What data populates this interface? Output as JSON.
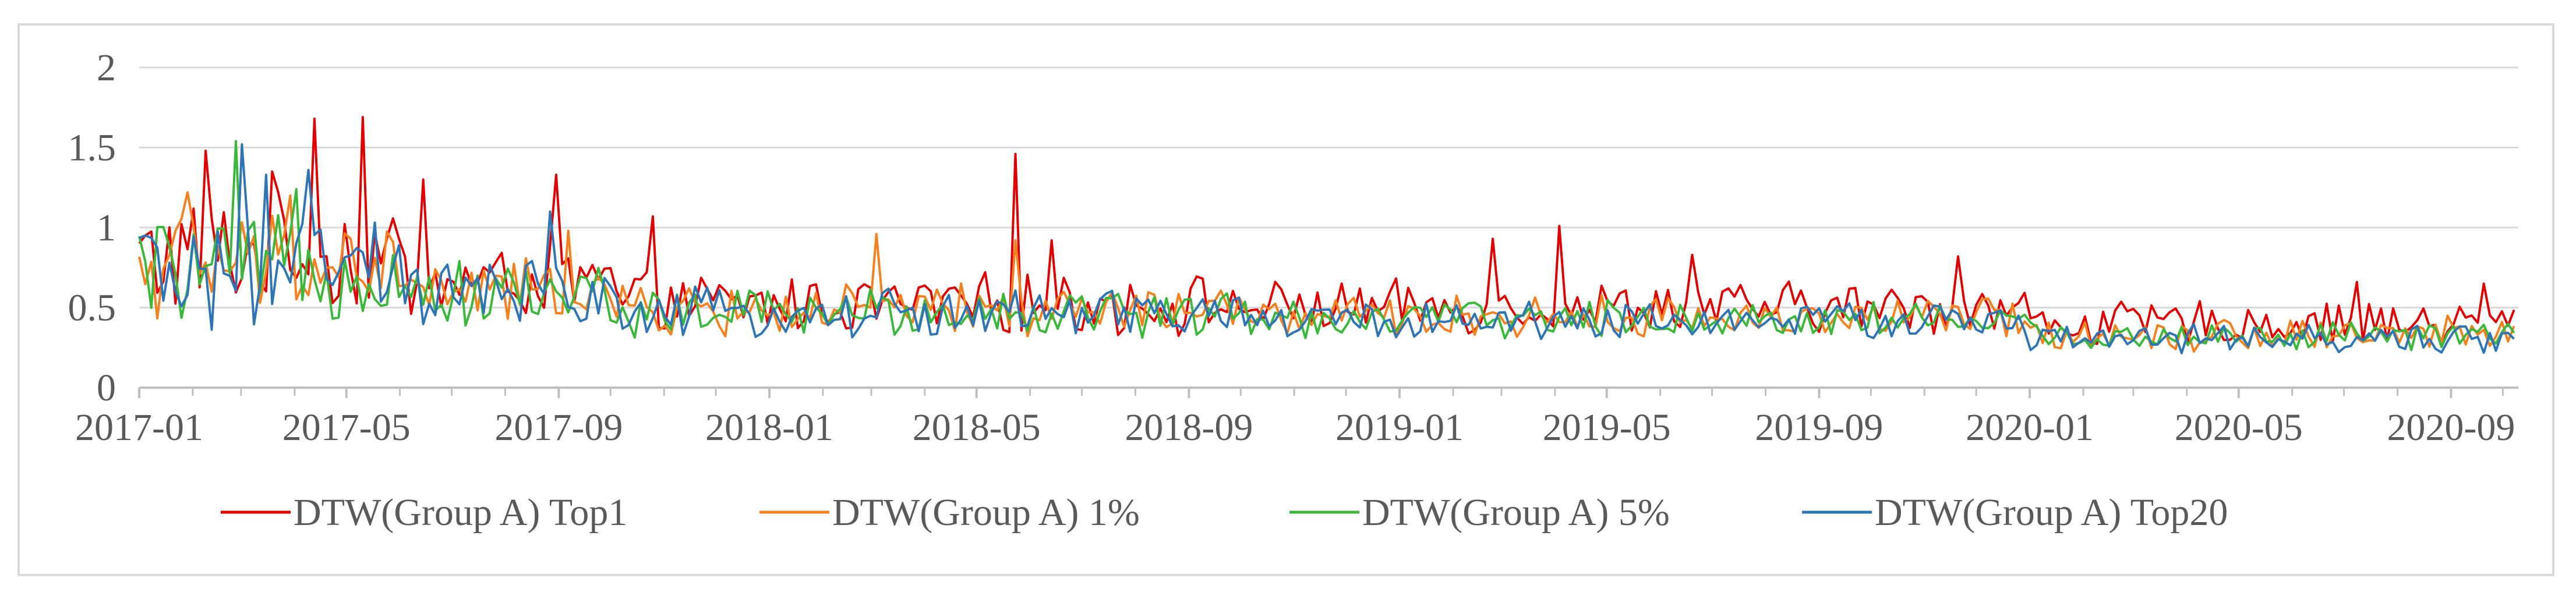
{
  "chart_data": {
    "type": "line",
    "title": "",
    "xlabel": "",
    "ylabel": "",
    "ylim": [
      0,
      2
    ],
    "yticks": [
      "0",
      "0.5",
      "1",
      "1.5",
      "2"
    ],
    "ytick_values": [
      0,
      0.5,
      1,
      1.5,
      2
    ],
    "grid": true,
    "legend_position": "bottom",
    "x_start": "2017-01-01",
    "x_end": "2020-10-10",
    "xticks": [
      "2017-01",
      "2017-05",
      "2017-09",
      "2018-01",
      "2018-05",
      "2018-09",
      "2019-01",
      "2019-05",
      "2019-09",
      "2020-01",
      "2020-05",
      "2020-09"
    ],
    "frequency": "approx. 2 observations per week",
    "series": [
      {
        "name": "DTW(Group A) Top1",
        "color": "#e00000",
        "segments": [
          {
            "from": "2017-01-01",
            "to": "2017-05-31",
            "mean": 0.82,
            "amp": 0.32
          },
          {
            "from": "2017-06-01",
            "to": "2017-09-30",
            "mean": 0.66,
            "amp": 0.2
          },
          {
            "from": "2017-10-01",
            "to": "2018-09-30",
            "mean": 0.52,
            "amp": 0.16
          },
          {
            "from": "2018-10-01",
            "to": "2019-12-31",
            "mean": 0.5,
            "amp": 0.14
          },
          {
            "from": "2020-01-01",
            "to": "2020-10-10",
            "mean": 0.4,
            "amp": 0.12
          }
        ],
        "peaks": [
          {
            "date": "2017-04-12",
            "value": 1.68
          },
          {
            "date": "2017-05-12",
            "value": 1.69
          },
          {
            "date": "2017-02-08",
            "value": 1.48
          },
          {
            "date": "2017-03-20",
            "value": 1.35
          },
          {
            "date": "2017-06-15",
            "value": 1.3
          },
          {
            "date": "2017-08-30",
            "value": 1.33
          },
          {
            "date": "2017-10-25",
            "value": 1.07
          },
          {
            "date": "2018-05-22",
            "value": 1.46
          },
          {
            "date": "2018-06-12",
            "value": 0.92
          },
          {
            "date": "2019-02-25",
            "value": 0.93
          },
          {
            "date": "2019-04-05",
            "value": 1.01
          },
          {
            "date": "2019-06-20",
            "value": 0.83
          },
          {
            "date": "2019-11-20",
            "value": 0.82
          },
          {
            "date": "2020-07-10",
            "value": 0.66
          },
          {
            "date": "2020-09-20",
            "value": 0.65
          }
        ]
      },
      {
        "name": "DTW(Group A) 1%",
        "color": "#f4811f",
        "segments": [
          {
            "from": "2017-01-01",
            "to": "2017-05-31",
            "mean": 0.76,
            "amp": 0.28
          },
          {
            "from": "2017-06-01",
            "to": "2017-09-30",
            "mean": 0.6,
            "amp": 0.17
          },
          {
            "from": "2017-10-01",
            "to": "2018-09-30",
            "mean": 0.48,
            "amp": 0.14
          },
          {
            "from": "2018-10-01",
            "to": "2019-12-31",
            "mean": 0.44,
            "amp": 0.11
          },
          {
            "from": "2020-01-01",
            "to": "2020-10-10",
            "mean": 0.34,
            "amp": 0.09
          }
        ],
        "peaks": [
          {
            "date": "2017-01-28",
            "value": 1.22
          },
          {
            "date": "2017-03-30",
            "value": 1.2
          },
          {
            "date": "2017-09-05",
            "value": 0.98
          },
          {
            "date": "2018-03-05",
            "value": 0.96
          },
          {
            "date": "2018-05-22",
            "value": 0.92
          }
        ]
      },
      {
        "name": "DTW(Group A) 5%",
        "color": "#3bb83b",
        "segments": [
          {
            "from": "2017-01-01",
            "to": "2017-05-31",
            "mean": 0.74,
            "amp": 0.27
          },
          {
            "from": "2017-06-01",
            "to": "2017-09-30",
            "mean": 0.59,
            "amp": 0.17
          },
          {
            "from": "2017-10-01",
            "to": "2018-09-30",
            "mean": 0.47,
            "amp": 0.14
          },
          {
            "from": "2018-10-01",
            "to": "2019-12-31",
            "mean": 0.43,
            "amp": 0.1
          },
          {
            "from": "2020-01-01",
            "to": "2020-10-10",
            "mean": 0.32,
            "amp": 0.08
          }
        ],
        "peaks": [
          {
            "date": "2017-02-26",
            "value": 1.54
          },
          {
            "date": "2017-04-01",
            "value": 1.24
          }
        ]
      },
      {
        "name": "DTW(Group A) Top20",
        "color": "#2e75b6",
        "segments": [
          {
            "from": "2017-01-01",
            "to": "2017-05-31",
            "mean": 0.72,
            "amp": 0.3
          },
          {
            "from": "2017-06-01",
            "to": "2017-09-30",
            "mean": 0.58,
            "amp": 0.18
          },
          {
            "from": "2017-10-01",
            "to": "2018-09-30",
            "mean": 0.46,
            "amp": 0.14
          },
          {
            "from": "2018-10-01",
            "to": "2019-12-31",
            "mean": 0.42,
            "amp": 0.1
          },
          {
            "from": "2020-01-01",
            "to": "2020-10-10",
            "mean": 0.3,
            "amp": 0.08
          }
        ],
        "peaks": [
          {
            "date": "2017-02-28",
            "value": 1.52
          },
          {
            "date": "2017-03-15",
            "value": 1.33
          },
          {
            "date": "2017-04-10",
            "value": 1.36
          },
          {
            "date": "2017-08-28",
            "value": 1.1
          }
        ]
      }
    ]
  }
}
